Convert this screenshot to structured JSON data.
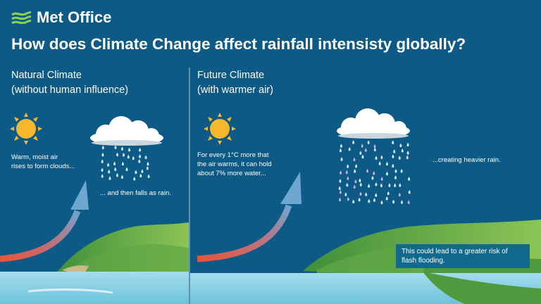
{
  "brand": {
    "logo_text": "Met Office"
  },
  "title": "How does Climate Change affect rainfall intensisty globally?",
  "left_panel": {
    "heading_line1": "Natural Climate",
    "heading_line2": "(without human influence)",
    "caption_rise_1": "Warm, moist air",
    "caption_rise_2": "rises to form clouds...",
    "caption_fall": "... and then falls as rain."
  },
  "right_panel": {
    "heading_line1": "Future Climate",
    "heading_line2": "(with warmer air)",
    "caption_warm_1": "For every 1°C more that",
    "caption_warm_2": "the air warms, it can hold",
    "caption_warm_3": "about 7% more water...",
    "caption_heavy": "...creating heavier rain.",
    "note_line1": "This could lead to a greater risk of",
    "note_line2": "flash flooding."
  },
  "colors": {
    "background": "#0d5a86",
    "sun": "#f5b82e",
    "cloud": "#ffffff",
    "rain": "#cfe7f5",
    "arrow_warm": "#e8553a",
    "arrow_cool": "#6fa6cf",
    "land": "#78b84a",
    "sea": "#8fd3e6"
  },
  "icons": [
    "met-office-logo-icon",
    "sun-icon",
    "cloud-icon",
    "rain-drops-icon",
    "rising-air-arrow-icon"
  ]
}
